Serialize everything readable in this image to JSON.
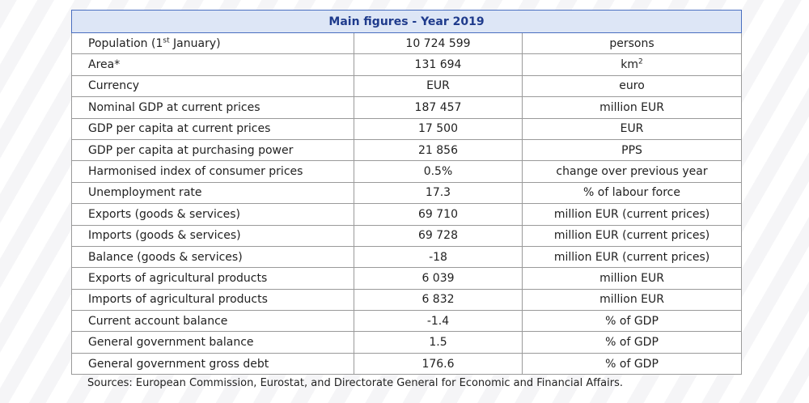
{
  "table": {
    "title": "Main figures - Year 2019",
    "rows": [
      {
        "label": "Population (1",
        "label_sup": "st",
        "label_after": " January)",
        "value": "10 724 599",
        "unit": "persons"
      },
      {
        "label": "Area*",
        "value": "131 694",
        "unit": "km",
        "unit_sup": "2"
      },
      {
        "label": "Currency",
        "value": "EUR",
        "unit": "euro"
      },
      {
        "label": "Nominal GDP at current prices",
        "value": "187 457",
        "unit": "million EUR"
      },
      {
        "label": "GDP per capita at current prices",
        "value": "17 500",
        "unit": "EUR"
      },
      {
        "label": "GDP per capita at purchasing power",
        "value": "21 856",
        "unit": "PPS"
      },
      {
        "label": "Harmonised index of consumer prices",
        "value": "0.5%",
        "unit": "change over previous year"
      },
      {
        "label": "Unemployment rate",
        "value": "17.3",
        "unit": "% of labour force"
      },
      {
        "label": "Exports (goods & services)",
        "value": "69 710",
        "unit": "million EUR (current prices)"
      },
      {
        "label": "Imports (goods & services)",
        "value": "69 728",
        "unit": "million EUR (current prices)"
      },
      {
        "label": "Balance (goods & services)",
        "value": "-18",
        "unit": "million EUR (current prices)"
      },
      {
        "label": "Exports of agricultural products",
        "value": "6 039",
        "unit": "million EUR"
      },
      {
        "label": "Imports of agricultural products",
        "value": "6 832",
        "unit": "million EUR"
      },
      {
        "label": "Current account balance",
        "value": "-1.4",
        "unit": "% of GDP"
      },
      {
        "label": "General government balance",
        "value": "1.5",
        "unit": "% of GDP"
      },
      {
        "label": "General government gross debt",
        "value": "176.6",
        "unit": "% of GDP"
      }
    ],
    "source": "Sources: European Commission, Eurostat, and Directorate General for Economic and Financial Affairs."
  }
}
